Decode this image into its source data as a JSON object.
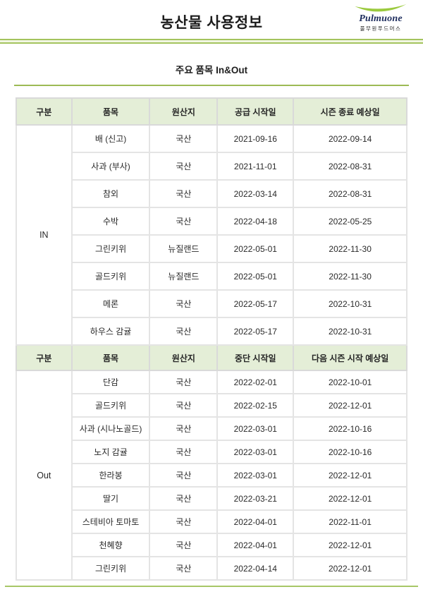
{
  "page": {
    "title": "농산물 사용정보",
    "subtitle": "주요 품목 In&Out"
  },
  "logo": {
    "brand": "Pulmuone",
    "subbrand": "풀무원푸드머스"
  },
  "colors": {
    "accent_green": "#a4c45e",
    "logo_swoosh_green": "#8dc63f",
    "logo_navy": "#1c2b5c",
    "table_header_bg": "#e4eed7",
    "table_border": "#e4e4e4"
  },
  "table_in": {
    "group_label": "IN",
    "headers": [
      "구분",
      "품목",
      "원산지",
      "공급 시작일",
      "시즌 종료 예상일"
    ],
    "rows": [
      [
        "배 (신고)",
        "국산",
        "2021-09-16",
        "2022-09-14"
      ],
      [
        "사과 (부사)",
        "국산",
        "2021-11-01",
        "2022-08-31"
      ],
      [
        "참외",
        "국산",
        "2022-03-14",
        "2022-08-31"
      ],
      [
        "수박",
        "국산",
        "2022-04-18",
        "2022-05-25"
      ],
      [
        "그린키위",
        "뉴질랜드",
        "2022-05-01",
        "2022-11-30"
      ],
      [
        "골드키위",
        "뉴질랜드",
        "2022-05-01",
        "2022-11-30"
      ],
      [
        "메론",
        "국산",
        "2022-05-17",
        "2022-10-31"
      ],
      [
        "하우스 감귤",
        "국산",
        "2022-05-17",
        "2022-10-31"
      ]
    ]
  },
  "table_out": {
    "group_label": "Out",
    "headers": [
      "구분",
      "품목",
      "원산지",
      "중단 시작일",
      "다음 시즌 시작 예상일"
    ],
    "rows": [
      [
        "단감",
        "국산",
        "2022-02-01",
        "2022-10-01"
      ],
      [
        "골드키위",
        "국산",
        "2022-02-15",
        "2022-12-01"
      ],
      [
        "사과 (시나노골드)",
        "국산",
        "2022-03-01",
        "2022-10-16"
      ],
      [
        "노지 감귤",
        "국산",
        "2022-03-01",
        "2022-10-16"
      ],
      [
        "한라봉",
        "국산",
        "2022-03-01",
        "2022-12-01"
      ],
      [
        "딸기",
        "국산",
        "2022-03-21",
        "2022-12-01"
      ],
      [
        "스테비아 토마토",
        "국산",
        "2022-04-01",
        "2022-11-01"
      ],
      [
        "천혜향",
        "국산",
        "2022-04-01",
        "2022-12-01"
      ],
      [
        "그린키위",
        "국산",
        "2022-04-14",
        "2022-12-01"
      ]
    ]
  }
}
